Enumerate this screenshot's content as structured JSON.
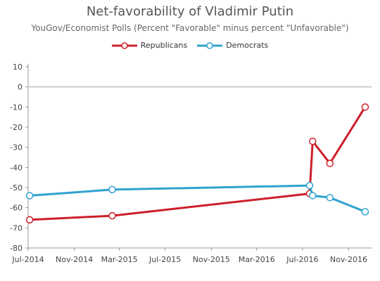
{
  "chart_data": {
    "type": "line",
    "title": "Net-favorability of Vladimir Putin",
    "subtitle": "YouGov/Economist Polls (Percent \"Favorable\" minus percent \"Unfavorable\")",
    "xlabel": "",
    "ylabel": "",
    "ylim": [
      -80,
      10
    ],
    "yticks": [
      10,
      0,
      -10,
      -20,
      -30,
      -40,
      -50,
      -60,
      -70,
      -80
    ],
    "xlim": [
      "2014-07-01",
      "2017-01-01"
    ],
    "xticks": [
      {
        "date": "2014-07-01",
        "label": "Jul-2014"
      },
      {
        "date": "2014-11-01",
        "label": "Nov-2014"
      },
      {
        "date": "2015-03-01",
        "label": "Mar-2015"
      },
      {
        "date": "2015-07-01",
        "label": "Jul-2015"
      },
      {
        "date": "2015-11-01",
        "label": "Nov-2015"
      },
      {
        "date": "2016-03-01",
        "label": "Mar-2016"
      },
      {
        "date": "2016-07-01",
        "label": "Jul-2016"
      },
      {
        "date": "2016-11-01",
        "label": "Nov-2016"
      }
    ],
    "grid": false,
    "legend_position": "top",
    "series": [
      {
        "name": "Republicans",
        "color": "#cc1f2a",
        "points": [
          {
            "x": "2014-07-05",
            "y": -66
          },
          {
            "x": "2015-02-10",
            "y": -64
          },
          {
            "x": "2016-07-20",
            "y": -53
          },
          {
            "x": "2016-07-28",
            "y": -27
          },
          {
            "x": "2016-09-12",
            "y": -38
          },
          {
            "x": "2016-12-15",
            "y": -10
          }
        ]
      },
      {
        "name": "Democrats",
        "color": "#2fa3cf",
        "points": [
          {
            "x": "2014-07-05",
            "y": -54
          },
          {
            "x": "2015-02-10",
            "y": -51
          },
          {
            "x": "2016-07-20",
            "y": -49
          },
          {
            "x": "2016-07-28",
            "y": -54
          },
          {
            "x": "2016-09-12",
            "y": -55
          },
          {
            "x": "2016-12-15",
            "y": -62
          }
        ]
      }
    ]
  }
}
